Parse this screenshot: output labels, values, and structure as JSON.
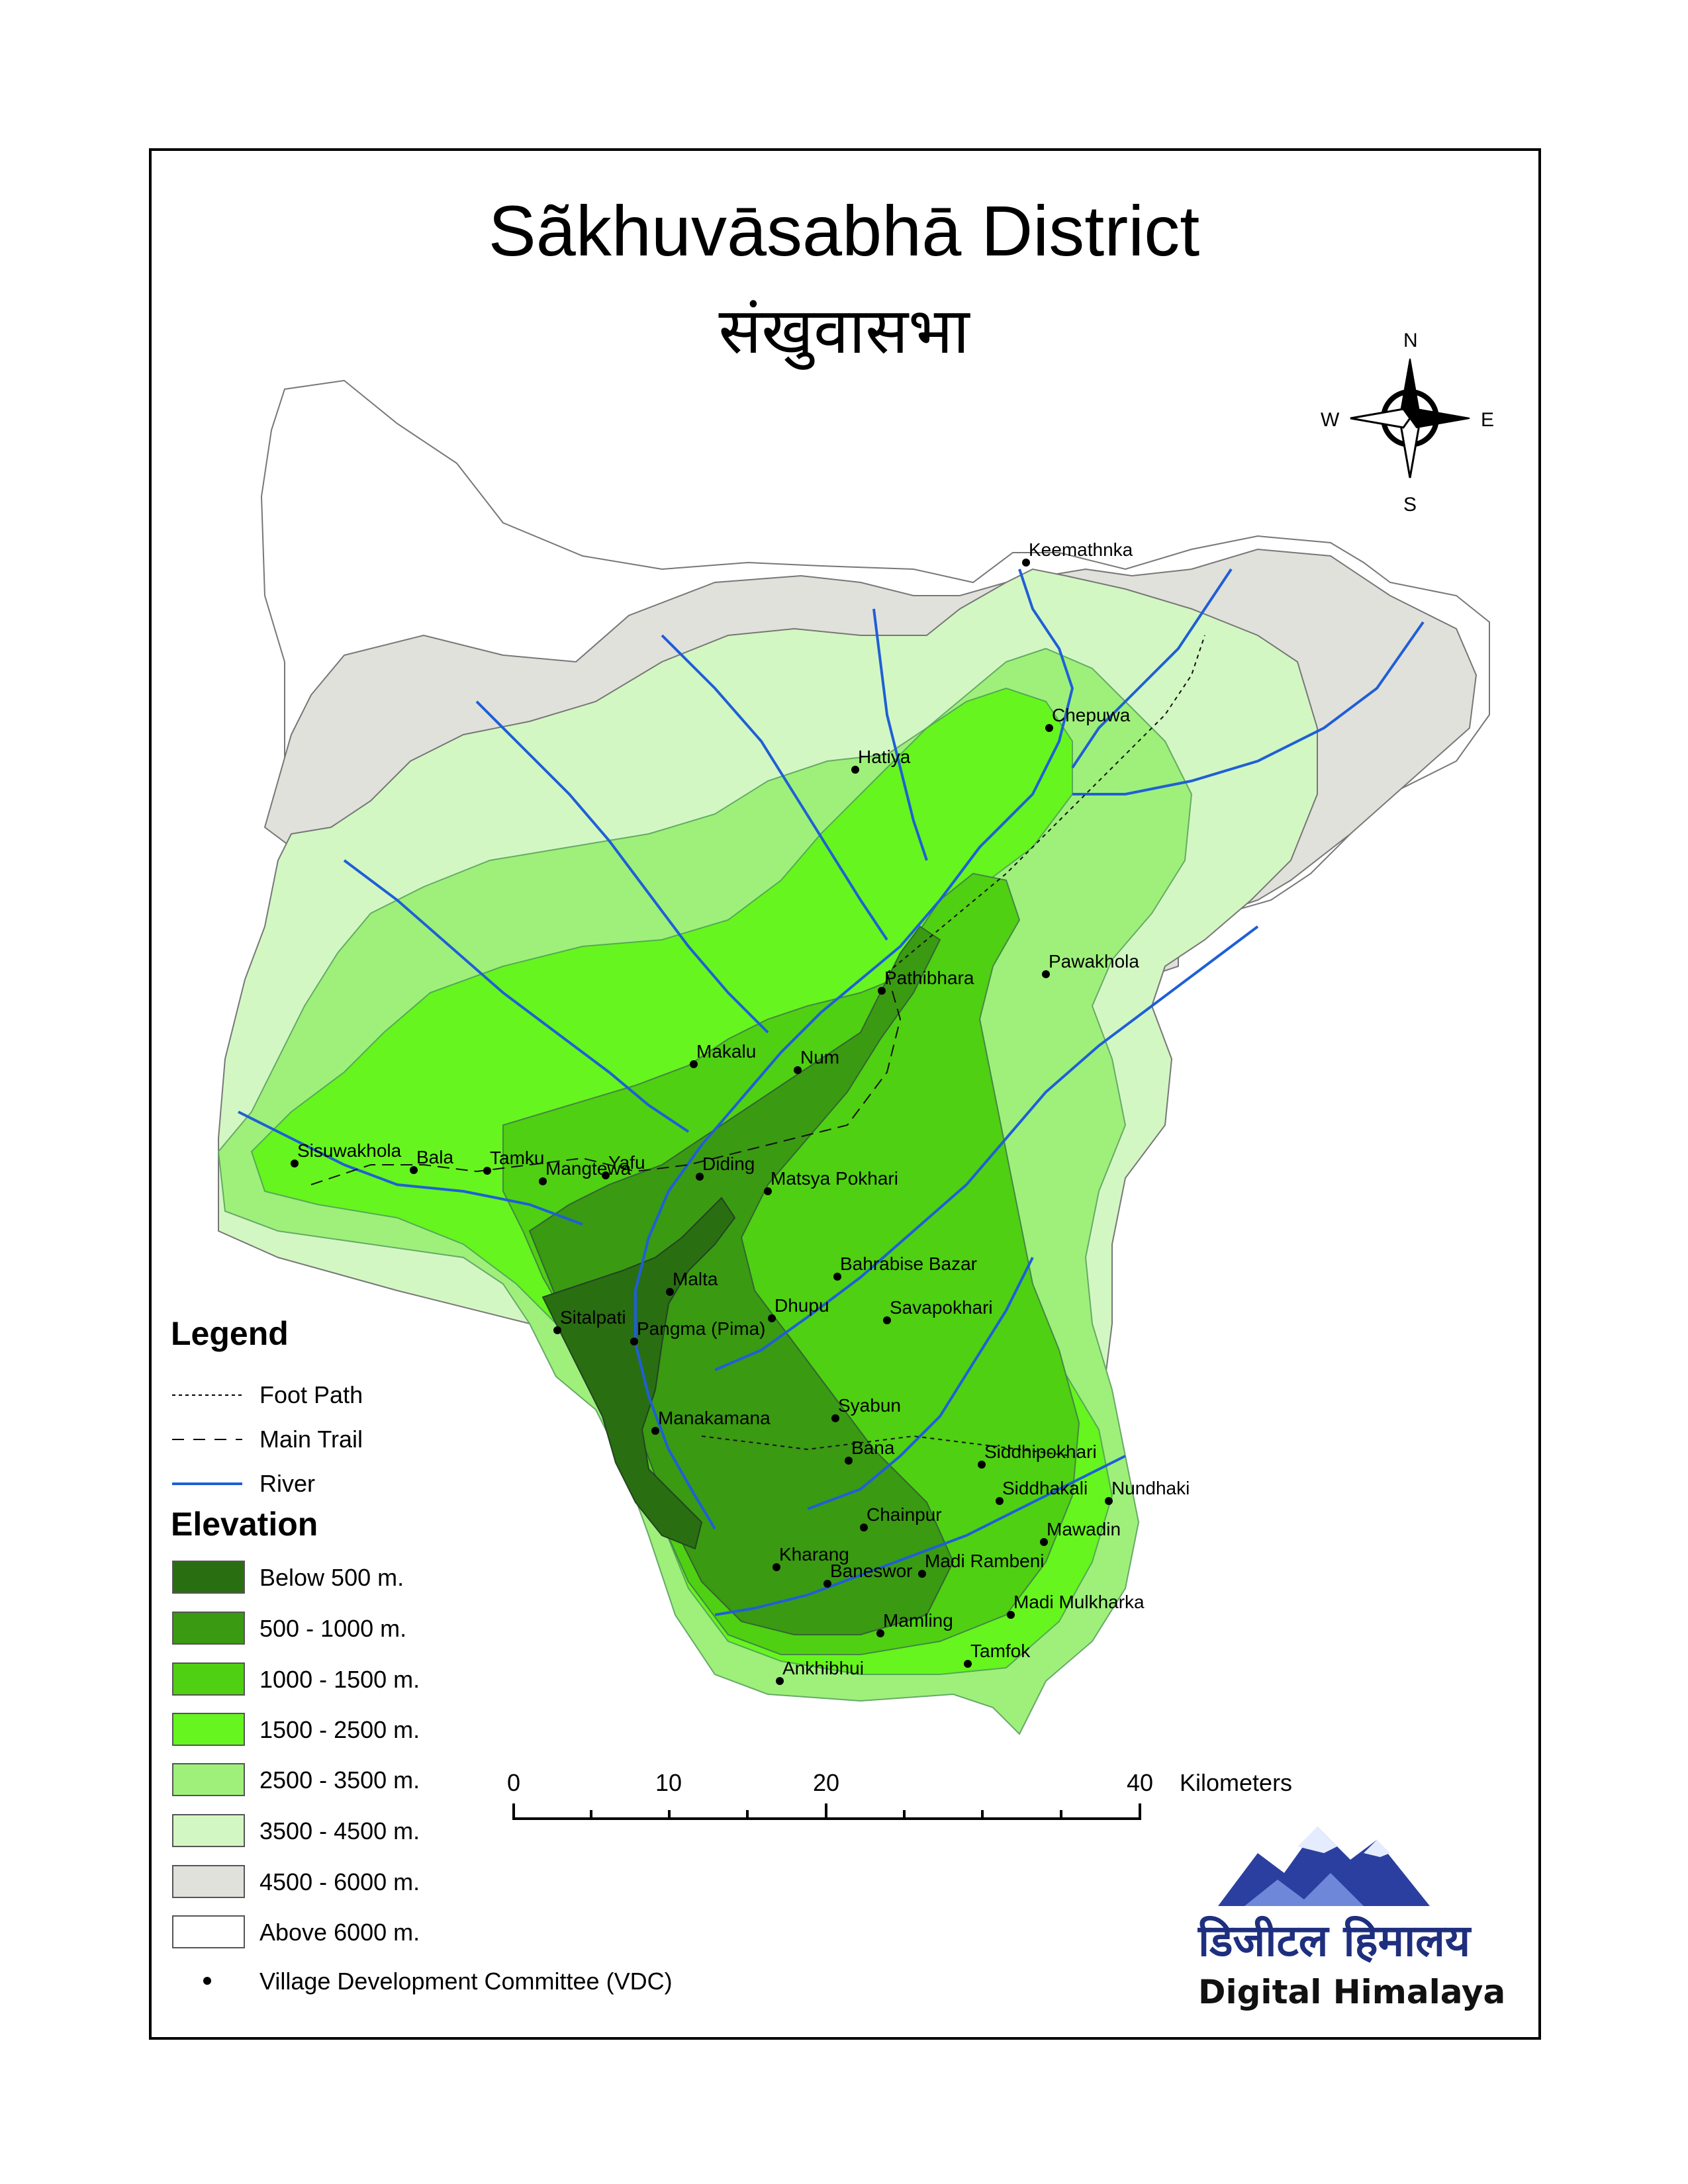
{
  "title": "Sãkhuvāsabhā District",
  "subtitle": "संखुवासभा",
  "compass": {
    "n": "N",
    "s": "S",
    "e": "E",
    "w": "W"
  },
  "legend": {
    "heading": "Legend",
    "lines": [
      {
        "label": "Foot Path",
        "style": "dotted"
      },
      {
        "label": "Main Trail",
        "style": "dashed"
      },
      {
        "label": "River",
        "style": "solid",
        "color": "#1f5fd6"
      }
    ],
    "elevation_heading": "Elevation",
    "elevation": [
      {
        "label": "Below 500 m.",
        "color": "#2a6e12"
      },
      {
        "label": "500 - 1000 m.",
        "color": "#3a9a12"
      },
      {
        "label": "1000 - 1500 m.",
        "color": "#4fd012"
      },
      {
        "label": "1500 - 2500 m.",
        "color": "#66f51e"
      },
      {
        "label": "2500 - 3500 m.",
        "color": "#9ef07a"
      },
      {
        "label": "3500 - 4500 m.",
        "color": "#d3f7c3"
      },
      {
        "label": "4500 - 6000 m.",
        "color": "#e1e1dc"
      },
      {
        "label": "Above 6000 m.",
        "color": "#ffffff"
      }
    ],
    "vdc": "Village Development Committee (VDC)"
  },
  "scale": {
    "ticks": [
      "0",
      "10",
      "20",
      "40"
    ],
    "unit": "Kilometers"
  },
  "villages": [
    "Keemathnka",
    "Chepuwa",
    "Hatiya",
    "Pawakhola",
    "Pathibhara",
    "Makalu",
    "Num",
    "Sisuwakhola",
    "Bala",
    "Tamku",
    "Mangtewa",
    "Yafu",
    "Diding",
    "Matsya Pokhari",
    "Bahrabise Bazar",
    "Malta",
    "Sitalpati",
    "Dhupu",
    "Savapokhari",
    "Pangma (Pima)",
    "Syabun",
    "Manakamana",
    "Bana",
    "Siddhipokhari",
    "Siddhakali",
    "Nundhaki",
    "Chainpur",
    "Mawadin",
    "Kharang",
    "Madi Rambeni",
    "Baneswor",
    "Madi Mulkharka",
    "Mamling",
    "Tamfok",
    "Ankhibhui"
  ],
  "logo": {
    "devanagari": "डिजीटल हिमालय",
    "english": "Digital Himalaya"
  }
}
